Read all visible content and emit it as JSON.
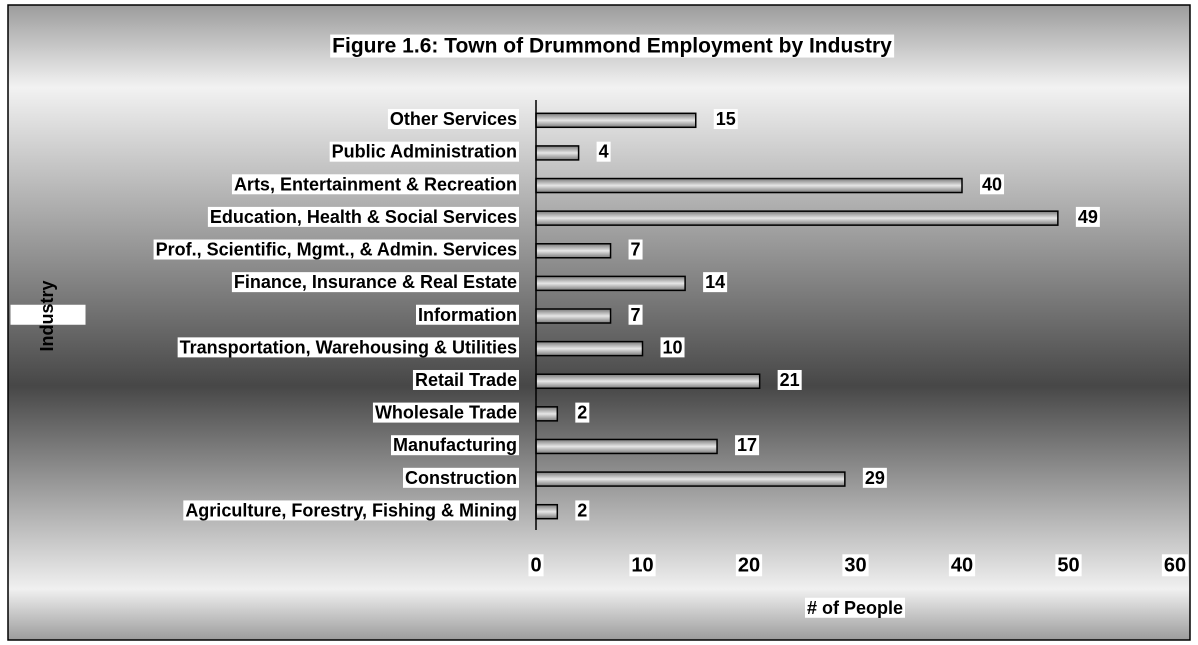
{
  "chart_data": {
    "type": "bar",
    "orientation": "horizontal",
    "title": "Figure 1.6: Town of Drummond Employment by Industry",
    "x_label": "# of People",
    "y_label": "Industry",
    "categories": [
      "Other Services",
      "Public Administration",
      "Arts, Entertainment & Recreation",
      "Education, Health & Social Services",
      "Prof., Scientific, Mgmt., & Admin. Services",
      "Finance, Insurance & Real Estate",
      "Information",
      "Transportation, Warehousing & Utilities",
      "Retail Trade",
      "Wholesale Trade",
      "Manufacturing",
      "Construction",
      "Agriculture, Forestry, Fishing & Mining"
    ],
    "values": [
      15,
      4,
      40,
      49,
      7,
      14,
      7,
      10,
      21,
      2,
      17,
      29,
      2
    ],
    "color": "#a6a6a6",
    "xlim": [
      0,
      60
    ],
    "xticks": [
      0,
      10,
      20,
      30,
      40,
      50,
      60
    ],
    "grid": false
  }
}
